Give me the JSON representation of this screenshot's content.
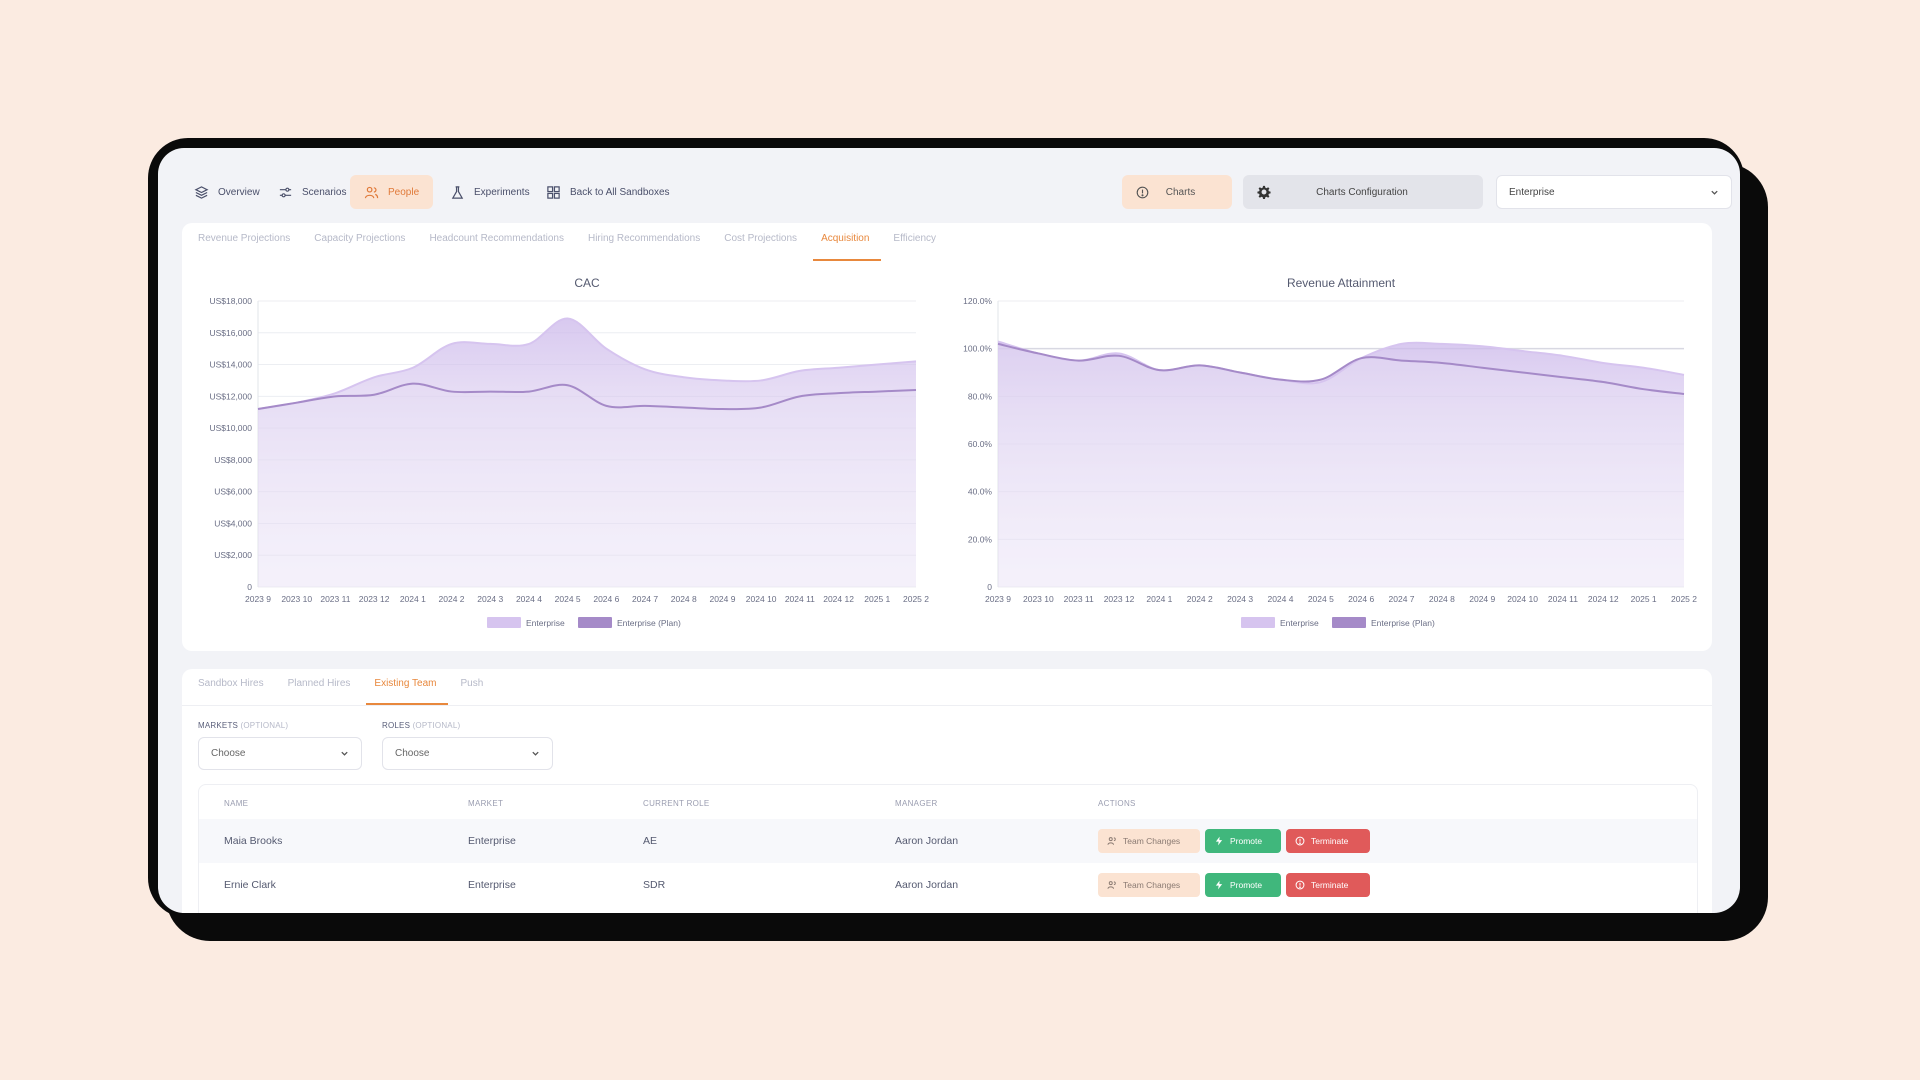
{
  "nav": {
    "overview": "Overview",
    "scenarios": "Scenarios",
    "people": "People",
    "experiments": "Experiments",
    "back": "Back to All Sandboxes",
    "charts": "Charts",
    "charts_config": "Charts Configuration",
    "segment_select": "Enterprise"
  },
  "chart_tabs": [
    "Revenue Projections",
    "Capacity Projections",
    "Headcount Recommendations",
    "Hiring Recommendations",
    "Cost Projections",
    "Acquisition",
    "Efficiency"
  ],
  "active_chart_tab": "Acquisition",
  "colors": {
    "accent": "#e8883d",
    "series_actual": "#d6c4ef",
    "series_plan": "#a58ac8",
    "promote": "#40b77c",
    "terminate": "#e05a5a"
  },
  "chart_data": [
    {
      "type": "area",
      "title": "CAC",
      "x": [
        "2023 9",
        "2023 10",
        "2023 11",
        "2023 12",
        "2024 1",
        "2024 2",
        "2024 3",
        "2024 4",
        "2024 5",
        "2024 6",
        "2024 7",
        "2024 8",
        "2024 9",
        "2024 10",
        "2024 11",
        "2024 12",
        "2025 1",
        "2025 2"
      ],
      "series": [
        {
          "name": "Enterprise",
          "values": [
            11200,
            11600,
            12200,
            13200,
            13800,
            15300,
            15300,
            15300,
            16900,
            15000,
            13700,
            13200,
            13000,
            13000,
            13600,
            13800,
            14000,
            14200
          ]
        },
        {
          "name": "Enterprise (Plan)",
          "values": [
            11200,
            11600,
            12000,
            12100,
            12800,
            12300,
            12300,
            12300,
            12700,
            11400,
            11400,
            11300,
            11200,
            11300,
            12000,
            12200,
            12300,
            12400
          ]
        }
      ],
      "yticks": [
        "US$18,000",
        "US$16,000",
        "US$14,000",
        "US$12,000",
        "US$10,000",
        "US$8,000",
        "US$6,000",
        "US$4,000",
        "US$2,000",
        "0"
      ],
      "ylim": [
        0,
        18000
      ],
      "legend": "bottom",
      "grid": true
    },
    {
      "type": "area",
      "title": "Revenue Attainment",
      "x": [
        "2023 9",
        "2023 10",
        "2023 11",
        "2023 12",
        "2024 1",
        "2024 2",
        "2024 3",
        "2024 4",
        "2024 5",
        "2024 6",
        "2024 7",
        "2024 8",
        "2024 9",
        "2024 10",
        "2024 11",
        "2024 12",
        "2025 1",
        "2025 2"
      ],
      "series": [
        {
          "name": "Enterprise",
          "values": [
            103,
            98,
            95,
            98,
            91,
            93,
            90,
            87,
            86,
            96,
            102,
            102,
            101,
            99,
            97,
            94,
            92,
            89
          ]
        },
        {
          "name": "Enterprise (Plan)",
          "values": [
            102,
            98,
            95,
            97,
            91,
            93,
            90,
            87,
            87,
            96,
            95,
            94,
            92,
            90,
            88,
            86,
            83,
            81
          ]
        }
      ],
      "yticks": [
        "120.0%",
        "100.0%",
        "80.0%",
        "60.0%",
        "40.0%",
        "20.0%",
        "0"
      ],
      "ylim": [
        0,
        120
      ],
      "reference_line": 100,
      "legend": "bottom",
      "grid": true
    }
  ],
  "team_tabs": [
    "Sandbox Hires",
    "Planned Hires",
    "Existing Team",
    "Push"
  ],
  "active_team_tab": "Existing Team",
  "filters": {
    "markets_label": "MARKETS",
    "roles_label": "ROLES",
    "optional": "(OPTIONAL)",
    "markets_value": "Choose",
    "roles_value": "Choose"
  },
  "table": {
    "headers": [
      "NAME",
      "MARKET",
      "CURRENT ROLE",
      "MANAGER",
      "ACTIONS"
    ],
    "rows": [
      {
        "name": "Maia Brooks",
        "market": "Enterprise",
        "role": "AE",
        "manager": "Aaron Jordan"
      },
      {
        "name": "Ernie Clark",
        "market": "Enterprise",
        "role": "SDR",
        "manager": "Aaron Jordan"
      }
    ],
    "actions": {
      "team": "Team Changes",
      "promote": "Promote",
      "terminate": "Terminate"
    }
  }
}
